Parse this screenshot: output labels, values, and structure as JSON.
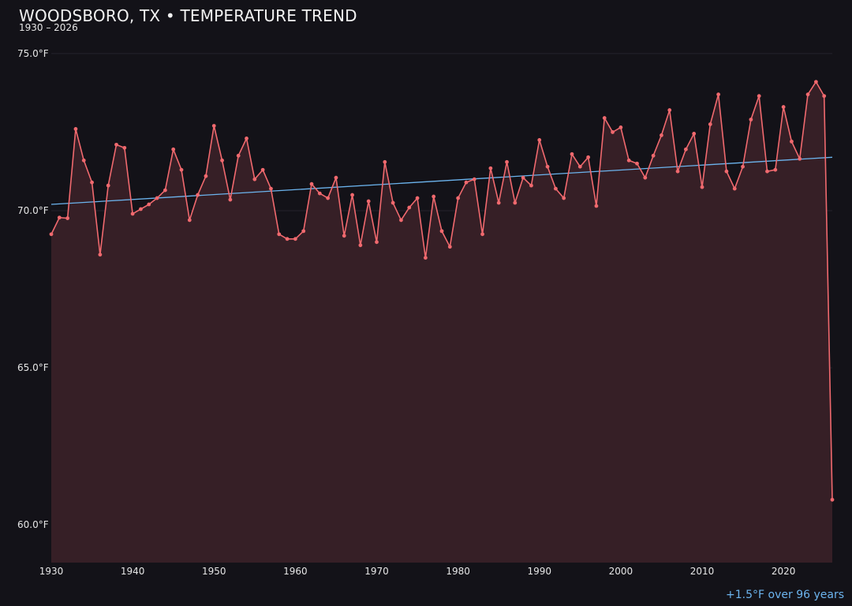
{
  "chart_data": {
    "type": "line",
    "title": "WOODSBORO, TX • TEMPERATURE TREND",
    "subtitle": "1930 – 2026",
    "annotation": "+1.5°F over 96 years",
    "xlim": [
      1930,
      2026
    ],
    "ylim": [
      58.8,
      75.7
    ],
    "y_ticks": [
      {
        "value": 60,
        "label": "60.0°F"
      },
      {
        "value": 65,
        "label": "65.0°F"
      },
      {
        "value": 70,
        "label": "70.0°F"
      },
      {
        "value": 75,
        "label": "75.0°F"
      }
    ],
    "x_ticks": [
      {
        "value": 1930,
        "label": "1930"
      },
      {
        "value": 1940,
        "label": "1940"
      },
      {
        "value": 1950,
        "label": "1950"
      },
      {
        "value": 1960,
        "label": "1960"
      },
      {
        "value": 1970,
        "label": "1970"
      },
      {
        "value": 1980,
        "label": "1980"
      },
      {
        "value": 1990,
        "label": "1990"
      },
      {
        "value": 2000,
        "label": "2000"
      },
      {
        "value": 2010,
        "label": "2010"
      },
      {
        "value": 2020,
        "label": "2020"
      }
    ],
    "grid": true,
    "series": [
      {
        "color": "#f0696e",
        "x": [
          1930,
          1931,
          1932,
          1933,
          1934,
          1935,
          1936,
          1937,
          1938,
          1939,
          1940,
          1941,
          1942,
          1943,
          1944,
          1945,
          1946,
          1947,
          1948,
          1949,
          1950,
          1951,
          1952,
          1953,
          1954,
          1955,
          1956,
          1957,
          1958,
          1959,
          1960,
          1961,
          1962,
          1963,
          1964,
          1965,
          1966,
          1967,
          1968,
          1969,
          1970,
          1971,
          1972,
          1973,
          1974,
          1975,
          1976,
          1977,
          1978,
          1979,
          1980,
          1981,
          1982,
          1983,
          1984,
          1985,
          1986,
          1987,
          1988,
          1989,
          1990,
          1991,
          1992,
          1993,
          1994,
          1995,
          1996,
          1997,
          1998,
          1999,
          2000,
          2001,
          2002,
          2003,
          2004,
          2005,
          2006,
          2007,
          2008,
          2009,
          2010,
          2011,
          2012,
          2013,
          2014,
          2015,
          2016,
          2017,
          2018,
          2019,
          2020,
          2021,
          2022,
          2023,
          2024,
          2025,
          2026
        ],
        "values": [
          69.25,
          69.78,
          69.76,
          72.6,
          71.6,
          70.9,
          68.6,
          70.8,
          72.1,
          72.0,
          69.9,
          70.05,
          70.2,
          70.4,
          70.65,
          71.95,
          71.3,
          69.7,
          70.5,
          71.1,
          72.7,
          71.6,
          70.35,
          71.75,
          72.3,
          71.0,
          71.3,
          70.7,
          69.25,
          69.1,
          69.1,
          69.35,
          70.85,
          70.55,
          70.4,
          71.05,
          69.2,
          70.5,
          68.9,
          70.3,
          69.0,
          71.55,
          70.25,
          69.7,
          70.1,
          70.4,
          68.5,
          70.45,
          69.35,
          68.85,
          70.4,
          70.9,
          71.0,
          69.25,
          71.35,
          70.25,
          71.55,
          70.25,
          71.05,
          70.8,
          72.25,
          71.4,
          70.7,
          70.4,
          71.8,
          71.4,
          71.7,
          70.15,
          72.95,
          72.5,
          72.65,
          71.6,
          71.5,
          71.05,
          71.75,
          72.4,
          73.2,
          71.25,
          71.95,
          72.45,
          70.75,
          72.75,
          73.7,
          71.25,
          70.7,
          71.4,
          72.9,
          73.65,
          71.25,
          71.3,
          73.3,
          72.2,
          71.65,
          73.7,
          74.1,
          73.65,
          60.8
        ]
      }
    ],
    "trend": {
      "color": "#6cb4ee",
      "start": [
        1930,
        70.2
      ],
      "end": [
        2026,
        71.7
      ]
    },
    "fill_color": "#361f26"
  }
}
